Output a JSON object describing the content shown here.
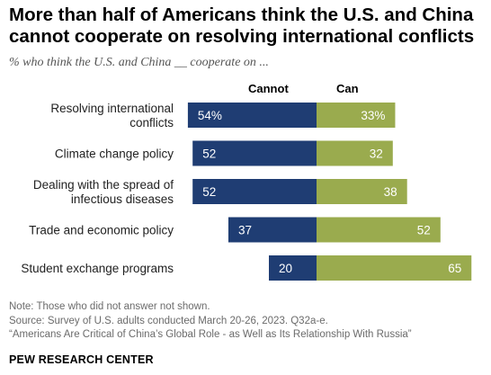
{
  "title": "More than half of Americans think the U.S. and China cannot cooperate on resolving international conflicts",
  "subtitle": "% who think the U.S. and China __ cooperate on ...",
  "notes": [
    "Note: Those who did not answer not shown.",
    "Source: Survey of U.S. adults conducted March 20-26, 2023. Q32a-e.",
    "“Americans Are Critical of China’s Global Role - as Well as Its Relationship With Russia”"
  ],
  "brand": "PEW RESEARCH CENTER",
  "colors": {
    "cannot": "#1f3d73",
    "can": "#9aab4e"
  },
  "chart_data": {
    "type": "bar",
    "orientation": "horizontal-diverging",
    "categories": [
      "Resolving international conflicts",
      "Climate change policy",
      "Dealing with the spread of infectious diseases",
      "Trade and economic policy",
      "Student exchange programs"
    ],
    "series": [
      {
        "name": "Cannot",
        "values": [
          54,
          52,
          52,
          37,
          20
        ],
        "labels": [
          "54%",
          "52",
          "52",
          "37",
          "20"
        ]
      },
      {
        "name": "Can",
        "values": [
          33,
          32,
          38,
          52,
          65
        ],
        "labels": [
          "33%",
          "32",
          "38",
          "52",
          "65"
        ]
      }
    ],
    "category_lines": [
      [
        "Resolving international",
        "conflicts"
      ],
      [
        "Climate change policy"
      ],
      [
        "Dealing with the spread of",
        "infectious diseases"
      ],
      [
        "Trade and economic policy"
      ],
      [
        "Student exchange programs"
      ]
    ]
  }
}
